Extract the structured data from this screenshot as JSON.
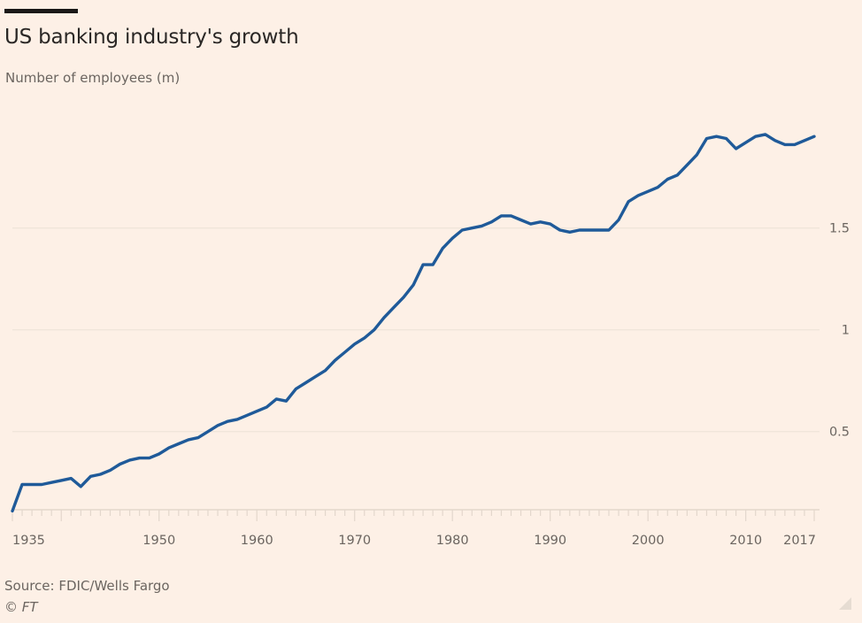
{
  "chart_data": {
    "type": "line",
    "title": "US banking industry's growth",
    "subtitle": "Number of employees (m)",
    "xlabel": "",
    "ylabel": "Number of employees (m)",
    "source": "Source: FDIC/Wells Fargo",
    "credit": "© FT",
    "xlim": [
      1935,
      2017
    ],
    "ylim": [
      0.11,
      2.0
    ],
    "grid": true,
    "legend": "none",
    "x_tick_labels": [
      {
        "value": 1935,
        "label": "1935"
      },
      {
        "value": 1950,
        "label": "1950"
      },
      {
        "value": 1960,
        "label": "1960"
      },
      {
        "value": 1970,
        "label": "1970"
      },
      {
        "value": 1980,
        "label": "1980"
      },
      {
        "value": 1990,
        "label": "1990"
      },
      {
        "value": 2000,
        "label": "2000"
      },
      {
        "value": 2010,
        "label": "2010"
      },
      {
        "value": 2017,
        "label": "2017"
      }
    ],
    "y_tick_labels": [
      {
        "value": 0.5,
        "label": "0.5"
      },
      {
        "value": 1,
        "label": "1"
      },
      {
        "value": 1.5,
        "label": "1.5"
      }
    ],
    "colors": {
      "line": "#1f5a99",
      "background": "#fdf0e6",
      "grid": "#ece1d6",
      "axis": "#e3d7cc"
    },
    "series": [
      {
        "name": "Number of employees (m)",
        "x": [
          1935,
          1936,
          1937,
          1938,
          1939,
          1940,
          1941,
          1942,
          1943,
          1944,
          1945,
          1946,
          1947,
          1948,
          1949,
          1950,
          1951,
          1952,
          1953,
          1954,
          1955,
          1956,
          1957,
          1958,
          1959,
          1960,
          1961,
          1962,
          1963,
          1964,
          1965,
          1966,
          1967,
          1968,
          1969,
          1970,
          1971,
          1972,
          1973,
          1974,
          1975,
          1976,
          1977,
          1978,
          1979,
          1980,
          1981,
          1982,
          1983,
          1984,
          1985,
          1986,
          1987,
          1988,
          1989,
          1990,
          1991,
          1992,
          1993,
          1994,
          1995,
          1996,
          1997,
          1998,
          1999,
          2000,
          2001,
          2002,
          2003,
          2004,
          2005,
          2006,
          2007,
          2008,
          2009,
          2010,
          2011,
          2012,
          2013,
          2014,
          2015,
          2016,
          2017
        ],
        "values": [
          0.11,
          0.24,
          0.24,
          0.24,
          0.25,
          0.26,
          0.27,
          0.23,
          0.28,
          0.29,
          0.31,
          0.34,
          0.36,
          0.37,
          0.37,
          0.39,
          0.42,
          0.44,
          0.46,
          0.47,
          0.5,
          0.53,
          0.55,
          0.56,
          0.58,
          0.6,
          0.62,
          0.66,
          0.65,
          0.71,
          0.74,
          0.77,
          0.8,
          0.85,
          0.89,
          0.93,
          0.96,
          1.0,
          1.06,
          1.11,
          1.16,
          1.22,
          1.32,
          1.32,
          1.4,
          1.45,
          1.49,
          1.5,
          1.51,
          1.53,
          1.56,
          1.56,
          1.54,
          1.52,
          1.53,
          1.52,
          1.49,
          1.48,
          1.49,
          1.49,
          1.49,
          1.49,
          1.54,
          1.63,
          1.66,
          1.68,
          1.7,
          1.74,
          1.76,
          1.81,
          1.86,
          1.94,
          1.95,
          1.94,
          1.89,
          1.92,
          1.95,
          1.96,
          1.93,
          1.91,
          1.91,
          1.93,
          1.95
        ]
      }
    ]
  }
}
